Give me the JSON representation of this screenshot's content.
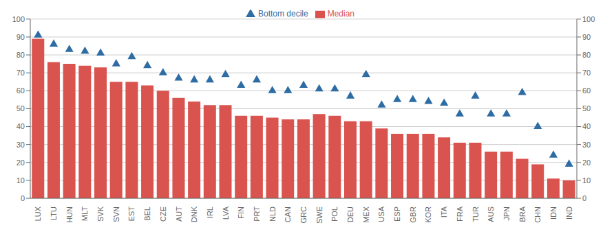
{
  "chart_data": {
    "type": "bar",
    "categories": [
      "LUX",
      "LTU",
      "HUN",
      "MLT",
      "SVK",
      "SVN",
      "EST",
      "BEL",
      "CZE",
      "AUT",
      "DNK",
      "IRL",
      "LVA",
      "FIN",
      "PRT",
      "NLD",
      "CAN",
      "GRC",
      "SWE",
      "POL",
      "DEU",
      "MEX",
      "USA",
      "ESP",
      "GBR",
      "KOR",
      "ITA",
      "FRA",
      "TUR",
      "AUS",
      "JPN",
      "BRA",
      "CHN",
      "IDN",
      "IND"
    ],
    "series": [
      {
        "name": "Median",
        "type": "bar",
        "color": "#d9534f",
        "values": [
          89,
          76,
          75,
          74,
          73,
          65,
          65,
          63,
          60,
          56,
          54,
          52,
          52,
          46,
          46,
          45,
          44,
          44,
          47,
          46,
          43,
          43,
          39,
          36,
          36,
          36,
          34,
          31,
          31,
          26,
          26,
          22,
          19,
          11,
          10
        ]
      },
      {
        "name": "Bottom decile",
        "type": "scatter",
        "marker": "triangle",
        "color": "#2e6da4",
        "values": [
          91,
          86,
          83,
          82,
          81,
          75,
          79,
          74,
          70,
          67,
          66,
          66,
          69,
          63,
          66,
          60,
          60,
          63,
          61,
          61,
          57,
          69,
          52,
          55,
          55,
          54,
          53,
          47,
          57,
          47,
          47,
          59,
          40,
          24,
          19
        ]
      }
    ],
    "ylim": [
      0,
      100
    ],
    "yticks": [
      0,
      10,
      20,
      30,
      40,
      50,
      60,
      70,
      80,
      90,
      100
    ],
    "y2lim": [
      0,
      100
    ],
    "y2ticks": [
      0,
      10,
      20,
      30,
      40,
      50,
      60,
      70,
      80,
      90,
      100
    ],
    "grid": true,
    "legend": "top"
  }
}
